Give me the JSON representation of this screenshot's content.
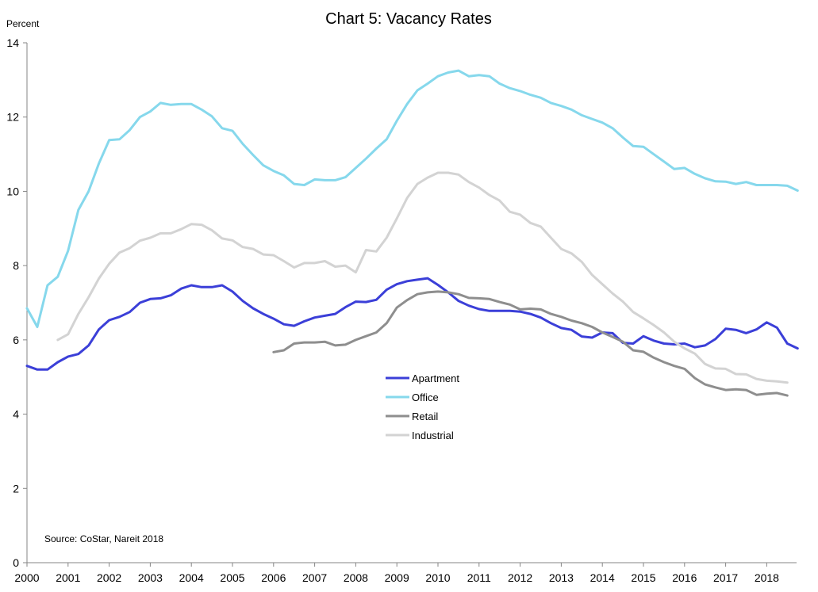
{
  "chart_data": {
    "type": "line",
    "title": "Chart 5: Vacancy Rates",
    "ylabel": "Percent",
    "xlabel": "",
    "source": "Source: CoStar, Nareit 2018",
    "ylim": [
      0,
      14
    ],
    "xlim": [
      2000,
      2018.75
    ],
    "yticks": [
      0,
      2,
      4,
      6,
      8,
      10,
      12,
      14
    ],
    "xticks": [
      "2000",
      "2001",
      "2002",
      "2003",
      "2004",
      "2005",
      "2006",
      "2007",
      "2008",
      "2009",
      "2010",
      "2011",
      "2012",
      "2013",
      "2014",
      "2015",
      "2016",
      "2017",
      "2018"
    ],
    "grid": false,
    "legend_position": "center",
    "series": [
      {
        "name": "Apartment",
        "color": "#3b3fd8",
        "points": [
          [
            2000.0,
            5.3
          ],
          [
            2000.25,
            5.2
          ],
          [
            2000.5,
            5.2
          ],
          [
            2000.75,
            5.4
          ],
          [
            2001.0,
            5.55
          ],
          [
            2001.25,
            5.62
          ],
          [
            2001.5,
            5.85
          ],
          [
            2001.75,
            6.28
          ],
          [
            2002.0,
            6.53
          ],
          [
            2002.25,
            6.62
          ],
          [
            2002.5,
            6.75
          ],
          [
            2002.75,
            7.0
          ],
          [
            2003.0,
            7.1
          ],
          [
            2003.25,
            7.12
          ],
          [
            2003.5,
            7.2
          ],
          [
            2003.75,
            7.38
          ],
          [
            2004.0,
            7.47
          ],
          [
            2004.25,
            7.42
          ],
          [
            2004.5,
            7.42
          ],
          [
            2004.75,
            7.47
          ],
          [
            2005.0,
            7.3
          ],
          [
            2005.25,
            7.05
          ],
          [
            2005.5,
            6.85
          ],
          [
            2005.75,
            6.7
          ],
          [
            2006.0,
            6.57
          ],
          [
            2006.25,
            6.42
          ],
          [
            2006.5,
            6.38
          ],
          [
            2006.75,
            6.5
          ],
          [
            2007.0,
            6.6
          ],
          [
            2007.25,
            6.65
          ],
          [
            2007.5,
            6.7
          ],
          [
            2007.75,
            6.88
          ],
          [
            2008.0,
            7.03
          ],
          [
            2008.25,
            7.02
          ],
          [
            2008.5,
            7.08
          ],
          [
            2008.75,
            7.35
          ],
          [
            2009.0,
            7.5
          ],
          [
            2009.25,
            7.58
          ],
          [
            2009.5,
            7.62
          ],
          [
            2009.75,
            7.66
          ],
          [
            2010.0,
            7.48
          ],
          [
            2010.25,
            7.28
          ],
          [
            2010.5,
            7.05
          ],
          [
            2010.75,
            6.92
          ],
          [
            2011.0,
            6.83
          ],
          [
            2011.25,
            6.78
          ],
          [
            2011.5,
            6.78
          ],
          [
            2011.75,
            6.78
          ],
          [
            2012.0,
            6.76
          ],
          [
            2012.25,
            6.7
          ],
          [
            2012.5,
            6.6
          ],
          [
            2012.75,
            6.45
          ],
          [
            2013.0,
            6.32
          ],
          [
            2013.25,
            6.27
          ],
          [
            2013.5,
            6.09
          ],
          [
            2013.75,
            6.06
          ],
          [
            2014.0,
            6.2
          ],
          [
            2014.25,
            6.18
          ],
          [
            2014.5,
            5.92
          ],
          [
            2014.75,
            5.9
          ],
          [
            2015.0,
            6.1
          ],
          [
            2015.25,
            5.98
          ],
          [
            2015.5,
            5.9
          ],
          [
            2015.75,
            5.88
          ],
          [
            2016.0,
            5.9
          ],
          [
            2016.25,
            5.8
          ],
          [
            2016.5,
            5.85
          ],
          [
            2016.75,
            6.02
          ],
          [
            2017.0,
            6.3
          ],
          [
            2017.25,
            6.27
          ],
          [
            2017.5,
            6.18
          ],
          [
            2017.75,
            6.28
          ],
          [
            2018.0,
            6.47
          ],
          [
            2018.25,
            6.33
          ],
          [
            2018.5,
            5.9
          ],
          [
            2018.75,
            5.77
          ]
        ]
      },
      {
        "name": "Office",
        "color": "#86d8ec",
        "points": [
          [
            2000.0,
            6.85
          ],
          [
            2000.25,
            6.35
          ],
          [
            2000.5,
            7.47
          ],
          [
            2000.75,
            7.7
          ],
          [
            2001.0,
            8.4
          ],
          [
            2001.25,
            9.5
          ],
          [
            2001.5,
            10.0
          ],
          [
            2001.75,
            10.75
          ],
          [
            2002.0,
            11.38
          ],
          [
            2002.25,
            11.4
          ],
          [
            2002.5,
            11.65
          ],
          [
            2002.75,
            12.0
          ],
          [
            2003.0,
            12.15
          ],
          [
            2003.25,
            12.38
          ],
          [
            2003.5,
            12.33
          ],
          [
            2003.75,
            12.35
          ],
          [
            2004.0,
            12.35
          ],
          [
            2004.25,
            12.2
          ],
          [
            2004.5,
            12.02
          ],
          [
            2004.75,
            11.7
          ],
          [
            2005.0,
            11.63
          ],
          [
            2005.25,
            11.28
          ],
          [
            2005.5,
            10.98
          ],
          [
            2005.75,
            10.7
          ],
          [
            2006.0,
            10.55
          ],
          [
            2006.25,
            10.43
          ],
          [
            2006.5,
            10.2
          ],
          [
            2006.75,
            10.17
          ],
          [
            2007.0,
            10.32
          ],
          [
            2007.25,
            10.3
          ],
          [
            2007.5,
            10.3
          ],
          [
            2007.75,
            10.38
          ],
          [
            2008.0,
            10.63
          ],
          [
            2008.25,
            10.88
          ],
          [
            2008.5,
            11.15
          ],
          [
            2008.75,
            11.4
          ],
          [
            2009.0,
            11.9
          ],
          [
            2009.25,
            12.35
          ],
          [
            2009.5,
            12.72
          ],
          [
            2009.75,
            12.9
          ],
          [
            2010.0,
            13.1
          ],
          [
            2010.25,
            13.2
          ],
          [
            2010.5,
            13.25
          ],
          [
            2010.75,
            13.1
          ],
          [
            2011.0,
            13.13
          ],
          [
            2011.25,
            13.1
          ],
          [
            2011.5,
            12.9
          ],
          [
            2011.75,
            12.78
          ],
          [
            2012.0,
            12.7
          ],
          [
            2012.25,
            12.6
          ],
          [
            2012.5,
            12.52
          ],
          [
            2012.75,
            12.38
          ],
          [
            2013.0,
            12.3
          ],
          [
            2013.25,
            12.2
          ],
          [
            2013.5,
            12.05
          ],
          [
            2013.75,
            11.95
          ],
          [
            2014.0,
            11.85
          ],
          [
            2014.25,
            11.7
          ],
          [
            2014.5,
            11.45
          ],
          [
            2014.75,
            11.22
          ],
          [
            2015.0,
            11.2
          ],
          [
            2015.25,
            11.0
          ],
          [
            2015.5,
            10.8
          ],
          [
            2015.75,
            10.6
          ],
          [
            2016.0,
            10.63
          ],
          [
            2016.25,
            10.47
          ],
          [
            2016.5,
            10.35
          ],
          [
            2016.75,
            10.27
          ],
          [
            2017.0,
            10.26
          ],
          [
            2017.25,
            10.2
          ],
          [
            2017.5,
            10.25
          ],
          [
            2017.75,
            10.17
          ],
          [
            2018.0,
            10.17
          ],
          [
            2018.25,
            10.17
          ],
          [
            2018.5,
            10.15
          ],
          [
            2018.75,
            10.02
          ]
        ]
      },
      {
        "name": "Retail",
        "color": "#8e8e8e",
        "points": [
          [
            2006.0,
            5.67
          ],
          [
            2006.25,
            5.72
          ],
          [
            2006.5,
            5.9
          ],
          [
            2006.75,
            5.93
          ],
          [
            2007.0,
            5.93
          ],
          [
            2007.25,
            5.95
          ],
          [
            2007.5,
            5.85
          ],
          [
            2007.75,
            5.87
          ],
          [
            2008.0,
            6.0
          ],
          [
            2008.25,
            6.1
          ],
          [
            2008.5,
            6.2
          ],
          [
            2008.75,
            6.45
          ],
          [
            2009.0,
            6.87
          ],
          [
            2009.25,
            7.07
          ],
          [
            2009.5,
            7.23
          ],
          [
            2009.75,
            7.28
          ],
          [
            2010.0,
            7.3
          ],
          [
            2010.25,
            7.28
          ],
          [
            2010.5,
            7.23
          ],
          [
            2010.75,
            7.13
          ],
          [
            2011.0,
            7.12
          ],
          [
            2011.25,
            7.1
          ],
          [
            2011.5,
            7.02
          ],
          [
            2011.75,
            6.95
          ],
          [
            2012.0,
            6.82
          ],
          [
            2012.25,
            6.84
          ],
          [
            2012.5,
            6.82
          ],
          [
            2012.75,
            6.7
          ],
          [
            2013.0,
            6.62
          ],
          [
            2013.25,
            6.52
          ],
          [
            2013.5,
            6.45
          ],
          [
            2013.75,
            6.35
          ],
          [
            2014.0,
            6.2
          ],
          [
            2014.25,
            6.08
          ],
          [
            2014.5,
            5.95
          ],
          [
            2014.75,
            5.72
          ],
          [
            2015.0,
            5.68
          ],
          [
            2015.25,
            5.52
          ],
          [
            2015.5,
            5.4
          ],
          [
            2015.75,
            5.3
          ],
          [
            2016.0,
            5.22
          ],
          [
            2016.25,
            4.97
          ],
          [
            2016.5,
            4.8
          ],
          [
            2016.75,
            4.72
          ],
          [
            2017.0,
            4.65
          ],
          [
            2017.25,
            4.67
          ],
          [
            2017.5,
            4.65
          ],
          [
            2017.75,
            4.52
          ],
          [
            2018.0,
            4.55
          ],
          [
            2018.25,
            4.57
          ],
          [
            2018.5,
            4.5
          ]
        ]
      },
      {
        "name": "Industrial",
        "color": "#d3d3d3",
        "points": [
          [
            2000.75,
            6.0
          ],
          [
            2001.0,
            6.15
          ],
          [
            2001.25,
            6.7
          ],
          [
            2001.5,
            7.15
          ],
          [
            2001.75,
            7.65
          ],
          [
            2002.0,
            8.05
          ],
          [
            2002.25,
            8.35
          ],
          [
            2002.5,
            8.47
          ],
          [
            2002.75,
            8.67
          ],
          [
            2003.0,
            8.75
          ],
          [
            2003.25,
            8.87
          ],
          [
            2003.5,
            8.87
          ],
          [
            2003.75,
            8.98
          ],
          [
            2004.0,
            9.12
          ],
          [
            2004.25,
            9.1
          ],
          [
            2004.5,
            8.95
          ],
          [
            2004.75,
            8.73
          ],
          [
            2005.0,
            8.68
          ],
          [
            2005.25,
            8.5
          ],
          [
            2005.5,
            8.45
          ],
          [
            2005.75,
            8.3
          ],
          [
            2006.0,
            8.28
          ],
          [
            2006.25,
            8.12
          ],
          [
            2006.5,
            7.95
          ],
          [
            2006.75,
            8.07
          ],
          [
            2007.0,
            8.07
          ],
          [
            2007.25,
            8.12
          ],
          [
            2007.5,
            7.97
          ],
          [
            2007.75,
            8.0
          ],
          [
            2008.0,
            7.82
          ],
          [
            2008.25,
            8.42
          ],
          [
            2008.5,
            8.38
          ],
          [
            2008.75,
            8.75
          ],
          [
            2009.0,
            9.27
          ],
          [
            2009.25,
            9.82
          ],
          [
            2009.5,
            10.2
          ],
          [
            2009.75,
            10.37
          ],
          [
            2010.0,
            10.5
          ],
          [
            2010.25,
            10.5
          ],
          [
            2010.5,
            10.45
          ],
          [
            2010.75,
            10.25
          ],
          [
            2011.0,
            10.1
          ],
          [
            2011.25,
            9.9
          ],
          [
            2011.5,
            9.75
          ],
          [
            2011.75,
            9.45
          ],
          [
            2012.0,
            9.37
          ],
          [
            2012.25,
            9.15
          ],
          [
            2012.5,
            9.05
          ],
          [
            2012.75,
            8.75
          ],
          [
            2013.0,
            8.45
          ],
          [
            2013.25,
            8.33
          ],
          [
            2013.5,
            8.1
          ],
          [
            2013.75,
            7.75
          ],
          [
            2014.0,
            7.5
          ],
          [
            2014.25,
            7.25
          ],
          [
            2014.5,
            7.03
          ],
          [
            2014.75,
            6.75
          ],
          [
            2015.0,
            6.58
          ],
          [
            2015.25,
            6.4
          ],
          [
            2015.5,
            6.2
          ],
          [
            2015.75,
            5.95
          ],
          [
            2016.0,
            5.77
          ],
          [
            2016.25,
            5.63
          ],
          [
            2016.5,
            5.35
          ],
          [
            2016.75,
            5.23
          ],
          [
            2017.0,
            5.22
          ],
          [
            2017.25,
            5.08
          ],
          [
            2017.5,
            5.07
          ],
          [
            2017.75,
            4.95
          ],
          [
            2018.0,
            4.9
          ],
          [
            2018.25,
            4.88
          ],
          [
            2018.5,
            4.85
          ]
        ]
      }
    ]
  }
}
